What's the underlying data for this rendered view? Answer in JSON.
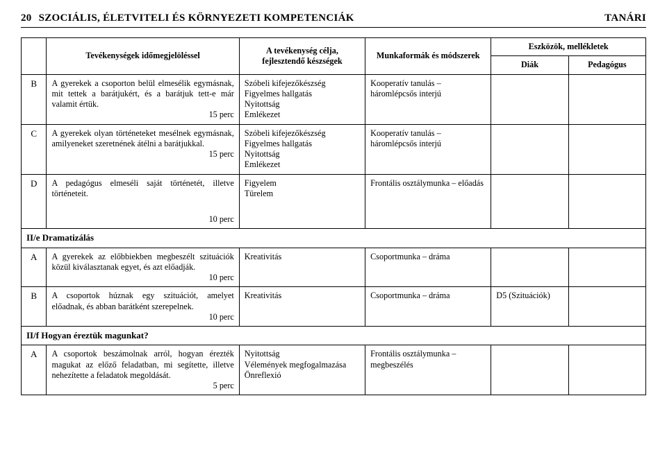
{
  "header": {
    "page": "20",
    "title": "SZOCIÁLIS, ÉLETVITELI ÉS KÖRNYEZETI KOMPETENCIÁK",
    "role": "TANÁRI"
  },
  "thead": {
    "c1": "",
    "c2": "Tevékenységek időmegjelöléssel",
    "c3": "A tevékenység célja, fejlesztendő készségek",
    "c4": "Munkaformák és módszerek",
    "c5": "Eszközök, mellékletek",
    "c5a": "Diák",
    "c5b": "Pedagógus"
  },
  "rows": {
    "r1": {
      "code": "B",
      "act": "A gyerekek a csoporton belül elmesélik egymásnak, mit tettek a barátjukért, és a barátjuk tett-e már valamit értük.",
      "time": "15 perc",
      "goal": "Szóbeli kifejezőkészség\nFigyelmes hallgatás\nNyitottság\nEmlékezet",
      "meth": "Kooperatív tanulás – háromlépcsős interjú",
      "d": "",
      "p": ""
    },
    "r2": {
      "code": "C",
      "act": "A gyerekek olyan történeteket mesélnek egymásnak, amilyeneket szeretnének átélni a barátjukkal.",
      "time": "15 perc",
      "goal": "Szóbeli kifejezőkészség\nFigyelmes hallgatás\nNyitottság\nEmlékezet",
      "meth": "Kooperatív tanulás – háromlépcsős interjú",
      "d": "",
      "p": ""
    },
    "r3": {
      "code": "D",
      "act": "A pedagógus elmeséli saját történetét, illetve történeteit.",
      "time": "10 perc",
      "goal": "Figyelem\nTürelem",
      "meth": "Frontális osztálymunka – előadás",
      "d": "",
      "p": ""
    },
    "s1": {
      "label": "II/e Dramatizálás"
    },
    "r4": {
      "code": "A",
      "act": "A gyerekek az előbbiekben megbeszélt szituációk közül kiválasztanak egyet, és azt előadják.",
      "time": "10 perc",
      "goal": "Kreativitás",
      "meth": "Csoportmunka – dráma",
      "d": "",
      "p": ""
    },
    "r5": {
      "code": "B",
      "act": "A csoportok húznak egy szituációt, amelyet előadnak, és abban barátként szerepelnek.",
      "time": "10 perc",
      "goal": "Kreativitás",
      "meth": "Csoportmunka – dráma",
      "d": "D5 (Szituációk)",
      "p": ""
    },
    "s2": {
      "label": "II/f Hogyan éreztük magunkat?"
    },
    "r6": {
      "code": "A",
      "act": "A csoportok beszámolnak arról, hogyan érezték magukat az előző feladatban, mi segítette, illetve nehezítette a feladatok megoldását.",
      "time": "5 perc",
      "goal": "Nyitottság\nVélemények megfogalmazása\nÖnreflexió",
      "meth": "Frontális osztálymunka – megbeszélés",
      "d": "",
      "p": ""
    }
  }
}
